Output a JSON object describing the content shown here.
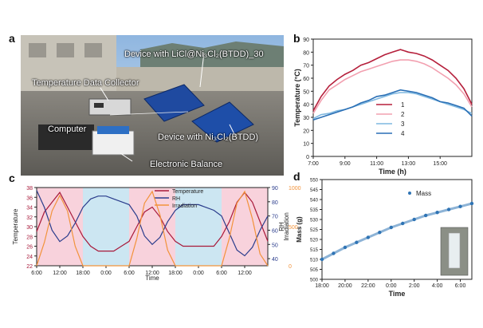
{
  "panels": {
    "a": {
      "letter": "a",
      "labels": {
        "device_licl": "Device with LiCl@Ni₃Cl₂(BTDD)_30",
        "temp_collector": "Temperature Data Collector",
        "computer": "Computer",
        "device_ni": "Device with Ni₃Cl₂(BTDD)",
        "balance": "Electronic Balance"
      }
    },
    "b": {
      "letter": "b"
    },
    "c": {
      "letter": "c"
    },
    "d": {
      "letter": "d"
    }
  },
  "colors": {
    "pink_band": "#f8d2dc",
    "blue_band": "#cce6f2",
    "temp_line": "#a8193a",
    "rh_line": "#2a3c8c",
    "irr_line": "#f2933b",
    "series1": "#b51f3b",
    "series2": "#f2a0b0",
    "series3": "#7fb8e0",
    "series4": "#2a6fb5",
    "mass_points": "#2f74b5"
  },
  "chart_data": [
    {
      "id": "b",
      "type": "line",
      "xlabel": "Time (h)",
      "ylabel": "Temperature (°C)",
      "xlim": [
        7,
        17
      ],
      "ylim": [
        0,
        90
      ],
      "xticks": [
        "7:00",
        "9:00",
        "11:00",
        "13:00",
        "15:00"
      ],
      "xtick_values": [
        7,
        9,
        11,
        13,
        15
      ],
      "yticks": [
        "0",
        "10",
        "20",
        "30",
        "40",
        "50",
        "60",
        "70",
        "80",
        "90"
      ],
      "ytick_values": [
        0,
        10,
        20,
        30,
        40,
        50,
        60,
        70,
        80,
        90
      ],
      "x": [
        7,
        7.5,
        8,
        8.5,
        9,
        9.5,
        10,
        10.5,
        11,
        11.5,
        12,
        12.5,
        13,
        13.5,
        14,
        14.5,
        15,
        15.5,
        16,
        16.5,
        17
      ],
      "series": [
        {
          "name": "1",
          "values": [
            35,
            46,
            54,
            59,
            63,
            66,
            70,
            72,
            75,
            78,
            80,
            82,
            80,
            79,
            77,
            74,
            70,
            66,
            60,
            52,
            40
          ]
        },
        {
          "name": "2",
          "values": [
            33,
            43,
            51,
            55,
            59,
            62,
            65,
            67,
            69,
            71,
            73,
            74,
            74,
            73,
            71,
            68,
            64,
            60,
            55,
            48,
            38
          ]
        },
        {
          "name": "3",
          "values": [
            29,
            32,
            33,
            35,
            36,
            38,
            40,
            42,
            44,
            46,
            48,
            49,
            49,
            48,
            46,
            44,
            42,
            40,
            38,
            36,
            33
          ]
        },
        {
          "name": "4",
          "values": [
            28,
            30,
            32,
            34,
            36,
            38,
            41,
            43,
            46,
            47,
            49,
            51,
            50,
            49,
            47,
            45,
            42,
            41,
            39,
            37,
            31
          ]
        }
      ]
    },
    {
      "id": "c",
      "type": "line",
      "xlabel": "Time",
      "ylabel": "Temperature",
      "y2label": "RH",
      "y3label": "Irradiation",
      "xlim": [
        0,
        60
      ],
      "ylim": [
        22,
        38
      ],
      "y2lim": [
        35,
        90
      ],
      "y3lim": [
        0,
        1000
      ],
      "xticks": [
        "6:00",
        "12:00",
        "18:00",
        "0:00",
        "6:00",
        "12:00",
        "18:00",
        "0:00",
        "6:00",
        "12:00"
      ],
      "xtick_values": [
        0,
        6,
        12,
        18,
        24,
        30,
        36,
        42,
        48,
        54
      ],
      "yticks": [
        "22",
        "24",
        "26",
        "28",
        "30",
        "32",
        "34",
        "36",
        "38"
      ],
      "ytick_values": [
        22,
        24,
        26,
        28,
        30,
        32,
        34,
        36,
        38
      ],
      "y2ticks": [
        "40",
        "50",
        "60",
        "70",
        "80",
        "90"
      ],
      "y2tick_values": [
        40,
        50,
        60,
        70,
        80,
        90
      ],
      "y3ticks": [
        "0",
        "500",
        "1000"
      ],
      "y3tick_values": [
        0,
        500,
        1000
      ],
      "bands": [
        {
          "from": 0,
          "to": 12,
          "type": "day"
        },
        {
          "from": 12,
          "to": 24,
          "type": "night"
        },
        {
          "from": 24,
          "to": 36,
          "type": "day"
        },
        {
          "from": 36,
          "to": 48,
          "type": "night"
        },
        {
          "from": 48,
          "to": 60,
          "type": "day"
        }
      ],
      "x": [
        0,
        2,
        4,
        6,
        8,
        10,
        12,
        14,
        16,
        18,
        20,
        22,
        24,
        26,
        28,
        30,
        32,
        34,
        36,
        38,
        40,
        42,
        44,
        46,
        48,
        50,
        52,
        54,
        56,
        58,
        60
      ],
      "series": [
        {
          "name": "Temperature",
          "axis": "left",
          "values": [
            29,
            33,
            35,
            37,
            34,
            31,
            28,
            26,
            25,
            25,
            25,
            26,
            27,
            30,
            33,
            34,
            32,
            29,
            27,
            26,
            26,
            26,
            26,
            26,
            28,
            31,
            35,
            37,
            35,
            31,
            27
          ]
        },
        {
          "name": "RH",
          "axis": "right",
          "values": [
            88,
            76,
            60,
            52,
            56,
            65,
            76,
            82,
            84,
            84,
            82,
            80,
            78,
            70,
            56,
            50,
            55,
            66,
            74,
            78,
            78,
            78,
            76,
            74,
            70,
            58,
            46,
            42,
            48,
            60,
            70
          ]
        },
        {
          "name": "Irradiation",
          "axis": "right2",
          "values": [
            0,
            300,
            700,
            900,
            700,
            250,
            0,
            0,
            0,
            0,
            0,
            0,
            0,
            350,
            800,
            950,
            650,
            200,
            0,
            0,
            0,
            0,
            0,
            0,
            0,
            350,
            800,
            950,
            600,
            150,
            0
          ]
        }
      ]
    },
    {
      "id": "d",
      "type": "scatter",
      "xlabel": "Time",
      "ylabel": "Mass (g)",
      "xlim": [
        18,
        31
      ],
      "ylim": [
        500,
        550
      ],
      "xticks": [
        "18:00",
        "20:00",
        "22:00",
        "0:00",
        "2:00",
        "4:00",
        "6:00"
      ],
      "xtick_values": [
        18,
        20,
        22,
        24,
        26,
        28,
        30
      ],
      "yticks": [
        "500",
        "505",
        "510",
        "515",
        "520",
        "525",
        "530",
        "535",
        "540",
        "545",
        "550"
      ],
      "ytick_values": [
        500,
        505,
        510,
        515,
        520,
        525,
        530,
        535,
        540,
        545,
        550
      ],
      "x": [
        18,
        19,
        20,
        21,
        22,
        23,
        24,
        25,
        26,
        27,
        28,
        29,
        30,
        31
      ],
      "series": [
        {
          "name": "Mass",
          "values": [
            510,
            513,
            516,
            518.5,
            521,
            523.5,
            526,
            528,
            530,
            532,
            533.5,
            535,
            536.5,
            538
          ]
        }
      ]
    }
  ]
}
